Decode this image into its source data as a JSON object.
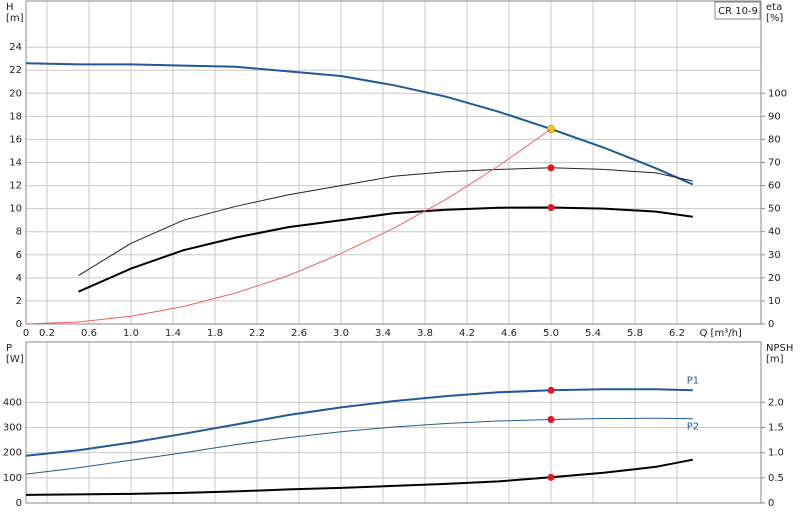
{
  "chart_data": [
    {
      "type": "line",
      "title": "CR 10-9",
      "ylabel": [
        "H",
        "[m]"
      ],
      "y2label": [
        "eta",
        "[%]"
      ],
      "xlabel": "Q [m³/h]",
      "x": [
        0,
        0.5,
        1,
        1.5,
        2,
        2.5,
        3,
        3.5,
        4,
        4.5,
        5,
        5.5,
        6,
        6.35
      ],
      "xlim": [
        0,
        7
      ],
      "xticks": [
        0,
        0.2,
        0.6,
        {
          "value": 1,
          "label": "1.0"
        },
        1.4,
        1.8,
        2.2,
        2.6,
        {
          "value": 3,
          "label": "3.0"
        },
        3.4,
        3.8,
        4.2,
        4.6,
        {
          "value": 5,
          "label": "5.0"
        },
        5.4,
        5.8,
        6.2
      ],
      "ylim": [
        0,
        28
      ],
      "yticks": [
        0,
        2,
        4,
        6,
        8,
        10,
        12,
        14,
        16,
        18,
        20,
        22,
        24
      ],
      "y2lim": [
        0,
        140
      ],
      "y2ticks": [
        0,
        10,
        20,
        30,
        40,
        50,
        60,
        70,
        80,
        90,
        100
      ],
      "grid": true,
      "series": [
        {
          "color": "#1f5a96",
          "width": 2,
          "values": [
            22.6,
            22.5,
            22.5,
            22.4,
            22.3,
            21.9,
            21.5,
            20.7,
            19.7,
            18.4,
            16.9,
            15.3,
            13.5,
            12.1
          ],
          "marker_index": 10,
          "marker_color": "#ffd21f"
        },
        {
          "color": "#222222",
          "width": 1,
          "axis": "y2",
          "values": [
            null,
            21,
            35,
            45,
            51,
            56,
            60,
            64,
            66,
            67,
            67.7,
            67,
            65.5,
            62
          ],
          "marker_index": 10,
          "marker_color": "#e8141e"
        },
        {
          "color": "#000000",
          "width": 2,
          "axis": "y2",
          "values": [
            null,
            14,
            24,
            32,
            37.5,
            42,
            45,
            48,
            49.5,
            50.4,
            50.5,
            50,
            48.7,
            46.5
          ],
          "marker_index": 10,
          "marker_color": "#e8141e"
        },
        {
          "color": "#f06060",
          "width": 1,
          "values": [
            0,
            0.17,
            0.68,
            1.52,
            2.7,
            4.2,
            6.1,
            8.3,
            10.8,
            13.7,
            16.9,
            null,
            null,
            null
          ]
        }
      ]
    },
    {
      "type": "line",
      "ylabel": [
        "P",
        "[W]"
      ],
      "y2label": [
        "NPSH",
        "[m]"
      ],
      "x": [
        0,
        0.5,
        1,
        1.5,
        2,
        2.5,
        3,
        3.5,
        4,
        4.5,
        5,
        5.5,
        6,
        6.35
      ],
      "xlim": [
        0,
        7
      ],
      "xticks": [
        0,
        0.2,
        0.6,
        1,
        1.4,
        1.8,
        2.2,
        2.6,
        3,
        3.4,
        3.8,
        4.2,
        4.6,
        5,
        5.4,
        5.8,
        6.2
      ],
      "xtick_labels": false,
      "ylim": [
        0,
        640
      ],
      "yticks": [
        0,
        100,
        200,
        300,
        400
      ],
      "y2lim": [
        0,
        3.2
      ],
      "y2ticks": [
        0,
        0.5,
        {
          "value": 1,
          "label": "1.0"
        },
        1.5,
        {
          "value": 2,
          "label": "2.0"
        }
      ],
      "grid": true,
      "series": [
        {
          "name": "P1",
          "color": "#1f5a96",
          "width": 2,
          "values": [
            188,
            210,
            240,
            275,
            312,
            350,
            380,
            405,
            425,
            440,
            448,
            452,
            452,
            448
          ],
          "marker_index": 10,
          "marker_color": "#e8141e"
        },
        {
          "name": "P2",
          "color": "#1f5a96",
          "width": 1,
          "values": [
            115,
            140,
            170,
            200,
            232,
            260,
            283,
            302,
            316,
            326,
            332,
            336,
            337,
            335
          ],
          "marker_index": 10,
          "marker_color": "#e8141e"
        },
        {
          "color": "#000000",
          "width": 2,
          "axis": "y2",
          "values": [
            0.16,
            0.17,
            0.18,
            0.2,
            0.23,
            0.27,
            0.3,
            0.34,
            0.38,
            0.43,
            0.51,
            0.6,
            0.72,
            0.86
          ],
          "marker_index": 10,
          "marker_color": "#e8141e"
        }
      ]
    }
  ]
}
